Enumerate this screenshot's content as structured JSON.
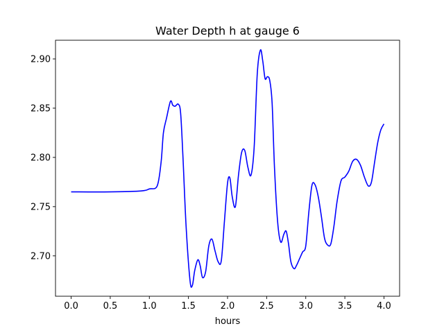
{
  "chart_data": {
    "type": "line",
    "title": "Water Depth h at gauge 6",
    "xlabel": "hours",
    "ylabel": "",
    "xlim": [
      -0.2,
      4.2
    ],
    "ylim": [
      2.659,
      2.919
    ],
    "x_ticks": [
      0.0,
      0.5,
      1.0,
      1.5,
      2.0,
      2.5,
      3.0,
      3.5,
      4.0
    ],
    "x_tick_labels": [
      "0.0",
      "0.5",
      "1.0",
      "1.5",
      "2.0",
      "2.5",
      "3.0",
      "3.5",
      "4.0"
    ],
    "y_ticks": [
      2.7,
      2.75,
      2.8,
      2.85,
      2.9
    ],
    "y_tick_labels": [
      "2.70",
      "2.75",
      "2.80",
      "2.85",
      "2.90"
    ],
    "grid": false,
    "series": [
      {
        "color": "#0000ff",
        "x": [
          0.0,
          0.5,
          0.9,
          1.0,
          1.1,
          1.15,
          1.18,
          1.22,
          1.27,
          1.3,
          1.33,
          1.37,
          1.4,
          1.43,
          1.47,
          1.52,
          1.55,
          1.58,
          1.62,
          1.65,
          1.68,
          1.72,
          1.76,
          1.8,
          1.84,
          1.88,
          1.92,
          1.96,
          2.0,
          2.03,
          2.06,
          2.1,
          2.14,
          2.18,
          2.22,
          2.26,
          2.3,
          2.34,
          2.38,
          2.42,
          2.45,
          2.48,
          2.51,
          2.54,
          2.57,
          2.6,
          2.64,
          2.68,
          2.72,
          2.75,
          2.78,
          2.81,
          2.85,
          2.88,
          2.92,
          2.96,
          3.0,
          3.04,
          3.08,
          3.12,
          3.16,
          3.2,
          3.24,
          3.28,
          3.32,
          3.36,
          3.4,
          3.45,
          3.5,
          3.55,
          3.6,
          3.65,
          3.7,
          3.75,
          3.8,
          3.84,
          3.88,
          3.92,
          3.96,
          4.0
        ],
        "y": [
          2.765,
          2.765,
          2.766,
          2.768,
          2.771,
          2.795,
          2.825,
          2.84,
          2.857,
          2.853,
          2.852,
          2.854,
          2.845,
          2.8,
          2.73,
          2.675,
          2.67,
          2.685,
          2.696,
          2.69,
          2.678,
          2.684,
          2.71,
          2.717,
          2.705,
          2.694,
          2.695,
          2.735,
          2.774,
          2.779,
          2.76,
          2.75,
          2.782,
          2.805,
          2.807,
          2.79,
          2.782,
          2.81,
          2.885,
          2.909,
          2.898,
          2.88,
          2.882,
          2.878,
          2.855,
          2.79,
          2.735,
          2.714,
          2.722,
          2.725,
          2.712,
          2.694,
          2.687,
          2.69,
          2.697,
          2.704,
          2.71,
          2.745,
          2.772,
          2.772,
          2.76,
          2.74,
          2.718,
          2.711,
          2.712,
          2.73,
          2.755,
          2.776,
          2.78,
          2.786,
          2.796,
          2.798,
          2.792,
          2.78,
          2.771,
          2.775,
          2.795,
          2.815,
          2.828,
          2.834
        ]
      }
    ]
  }
}
